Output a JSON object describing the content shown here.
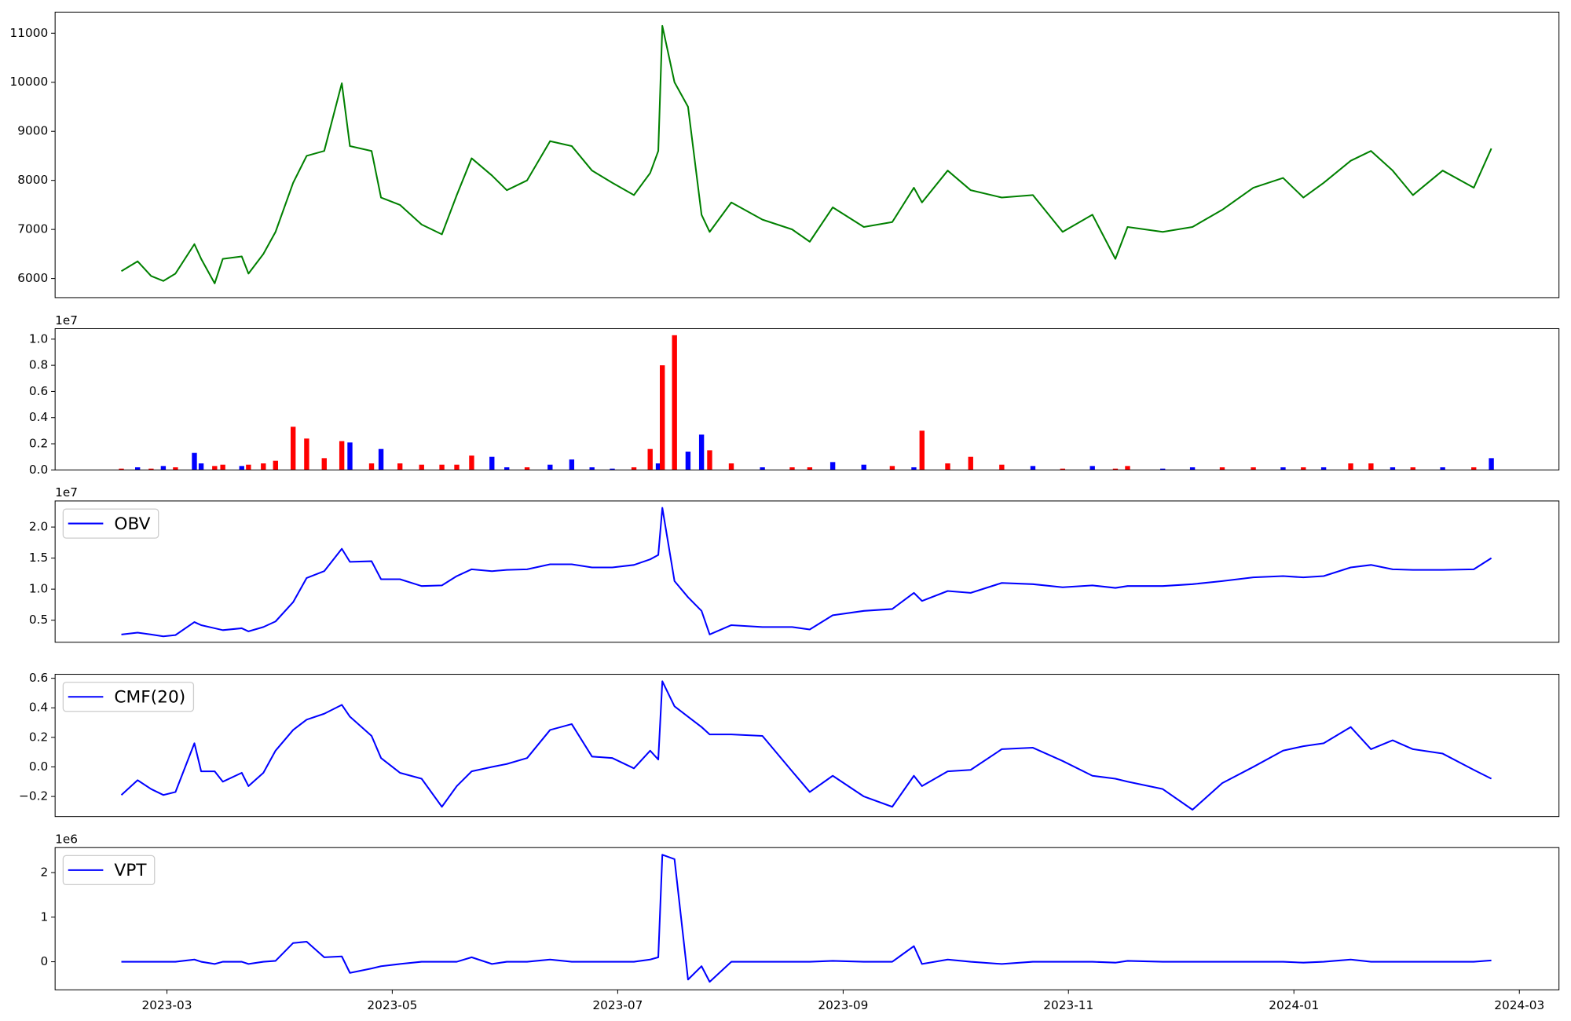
{
  "chart_data": [
    {
      "type": "line",
      "x": [
        2023.133,
        2023.145,
        2023.155,
        2023.164,
        2023.173,
        2023.187,
        2023.192,
        2023.202,
        2023.208,
        2023.222,
        2023.227,
        2023.238,
        2023.247,
        2023.26,
        2023.27,
        2023.283,
        2023.296,
        2023.302,
        2023.318,
        2023.325,
        2023.339,
        2023.355,
        2023.37,
        2023.381,
        2023.392,
        2023.407,
        2023.418,
        2023.433,
        2023.45,
        2023.466,
        2023.481,
        2023.496,
        2023.512,
        2023.524,
        2023.53,
        2023.533,
        2023.542,
        2023.552,
        2023.562,
        2023.568,
        2023.584,
        2023.607,
        2023.629,
        2023.642,
        2023.659,
        2023.682,
        2023.703,
        2023.719,
        2023.725,
        2023.744,
        2023.761,
        2023.784,
        2023.807,
        2023.829,
        2023.851,
        2023.868,
        2023.877,
        2023.903,
        2023.925,
        2023.947,
        2023.97,
        2023.992,
        2024.007,
        2024.022,
        2024.042,
        2024.057,
        2024.073,
        2024.088,
        2024.11,
        2024.133,
        2024.146
      ],
      "series": [
        {
          "color": "#008000",
          "values": [
            6150,
            6350,
            6050,
            5950,
            6100,
            6700,
            6400,
            5900,
            6400,
            6450,
            6100,
            6500,
            6950,
            7950,
            8500,
            8600,
            9980,
            8700,
            8600,
            7650,
            7500,
            7100,
            6900,
            7700,
            8450,
            8100,
            7800,
            8000,
            8800,
            8700,
            8200,
            7950,
            7700,
            8150,
            8600,
            11150,
            10000,
            9500,
            7300,
            6950,
            7550,
            7200,
            7000,
            6750,
            7450,
            7050,
            7150,
            7850,
            7550,
            8200,
            7800,
            7650,
            7700,
            6950,
            7300,
            6400,
            7050,
            6950,
            7050,
            7400,
            7850,
            8050,
            7650,
            7950,
            8400,
            8600,
            8200,
            7700,
            8200,
            7850,
            8650
          ]
        }
      ],
      "xlim": [
        2023.084,
        2024.196
      ],
      "ylim": [
        5610,
        11430
      ],
      "yticks": [
        6000,
        7000,
        8000,
        9000,
        10000,
        11000
      ]
    },
    {
      "type": "bar",
      "x": [
        2023.133,
        2023.145,
        2023.155,
        2023.164,
        2023.173,
        2023.187,
        2023.192,
        2023.202,
        2023.208,
        2023.222,
        2023.227,
        2023.238,
        2023.247,
        2023.26,
        2023.27,
        2023.283,
        2023.296,
        2023.302,
        2023.318,
        2023.325,
        2023.339,
        2023.355,
        2023.37,
        2023.381,
        2023.392,
        2023.407,
        2023.418,
        2023.433,
        2023.45,
        2023.466,
        2023.481,
        2023.496,
        2023.512,
        2023.524,
        2023.53,
        2023.533,
        2023.542,
        2023.552,
        2023.562,
        2023.568,
        2023.584,
        2023.607,
        2023.629,
        2023.642,
        2023.659,
        2023.682,
        2023.703,
        2023.719,
        2023.725,
        2023.744,
        2023.761,
        2023.784,
        2023.807,
        2023.829,
        2023.851,
        2023.868,
        2023.877,
        2023.903,
        2023.925,
        2023.947,
        2023.97,
        2023.992,
        2024.007,
        2024.022,
        2024.042,
        2024.057,
        2024.073,
        2024.088,
        2024.11,
        2024.133,
        2024.146
      ],
      "values": [
        0.01,
        0.02,
        0.01,
        0.03,
        0.02,
        0.13,
        0.05,
        0.03,
        0.04,
        0.03,
        0.04,
        0.05,
        0.07,
        0.33,
        0.24,
        0.09,
        0.22,
        0.21,
        0.05,
        0.16,
        0.05,
        0.04,
        0.04,
        0.04,
        0.11,
        0.1,
        0.02,
        0.02,
        0.04,
        0.08,
        0.02,
        0.01,
        0.02,
        0.16,
        0.05,
        0.8,
        1.03,
        0.14,
        0.27,
        0.15,
        0.05,
        0.02,
        0.02,
        0.02,
        0.06,
        0.04,
        0.03,
        0.02,
        0.3,
        0.05,
        0.1,
        0.04,
        0.03,
        0.01,
        0.03,
        0.01,
        0.03,
        0.01,
        0.02,
        0.02,
        0.02,
        0.02,
        0.02,
        0.02,
        0.05,
        0.05,
        0.02,
        0.02,
        0.02,
        0.02,
        0.09
      ],
      "colors": [
        "red",
        "blue",
        "red",
        "blue",
        "red",
        "blue",
        "blue",
        "red",
        "red",
        "blue",
        "red",
        "red",
        "red",
        "red",
        "red",
        "red",
        "red",
        "blue",
        "red",
        "blue",
        "red",
        "red",
        "red",
        "red",
        "red",
        "blue",
        "blue",
        "red",
        "blue",
        "blue",
        "blue",
        "blue",
        "red",
        "red",
        "blue",
        "red",
        "red",
        "blue",
        "blue",
        "red",
        "red",
        "blue",
        "red",
        "red",
        "blue",
        "blue",
        "red",
        "blue",
        "red",
        "red",
        "red",
        "red",
        "blue",
        "red",
        "blue",
        "red",
        "red",
        "blue",
        "blue",
        "red",
        "red",
        "blue",
        "red",
        "blue",
        "red",
        "red",
        "blue",
        "red",
        "blue",
        "red",
        "blue"
      ],
      "offset_label": "1e7",
      "xlim": [
        2023.084,
        2024.196
      ],
      "ylim": [
        0,
        1.08
      ],
      "yticks": [
        {
          "value": 0,
          "label": "0.0"
        },
        0.2,
        0.4,
        0.6,
        0.8,
        {
          "value": 1,
          "label": "1.0"
        }
      ]
    },
    {
      "type": "line",
      "x": [
        2023.133,
        2023.145,
        2023.155,
        2023.164,
        2023.173,
        2023.187,
        2023.192,
        2023.202,
        2023.208,
        2023.222,
        2023.227,
        2023.238,
        2023.247,
        2023.26,
        2023.27,
        2023.283,
        2023.296,
        2023.302,
        2023.318,
        2023.325,
        2023.339,
        2023.355,
        2023.37,
        2023.381,
        2023.392,
        2023.407,
        2023.418,
        2023.433,
        2023.45,
        2023.466,
        2023.481,
        2023.496,
        2023.512,
        2023.524,
        2023.53,
        2023.533,
        2023.542,
        2023.552,
        2023.562,
        2023.568,
        2023.584,
        2023.607,
        2023.629,
        2023.642,
        2023.659,
        2023.682,
        2023.703,
        2023.719,
        2023.725,
        2023.744,
        2023.761,
        2023.784,
        2023.807,
        2023.829,
        2023.851,
        2023.868,
        2023.877,
        2023.903,
        2023.925,
        2023.947,
        2023.97,
        2023.992,
        2024.007,
        2024.022,
        2024.042,
        2024.057,
        2024.073,
        2024.088,
        2024.11,
        2024.133,
        2024.146
      ],
      "series": [
        {
          "name": "OBV",
          "color": "#0000ff",
          "values": [
            0.27,
            0.3,
            0.27,
            0.24,
            0.26,
            0.47,
            0.42,
            0.37,
            0.34,
            0.37,
            0.32,
            0.39,
            0.48,
            0.79,
            1.18,
            1.29,
            1.65,
            1.44,
            1.45,
            1.16,
            1.16,
            1.05,
            1.06,
            1.21,
            1.32,
            1.29,
            1.31,
            1.32,
            1.4,
            1.4,
            1.35,
            1.35,
            1.39,
            1.48,
            1.55,
            2.31,
            1.13,
            0.87,
            0.65,
            0.27,
            0.42,
            0.39,
            0.39,
            0.35,
            0.58,
            0.65,
            0.68,
            0.94,
            0.81,
            0.97,
            0.94,
            1.1,
            1.08,
            1.03,
            1.06,
            1.02,
            1.05,
            1.05,
            1.08,
            1.13,
            1.19,
            1.21,
            1.19,
            1.21,
            1.35,
            1.39,
            1.32,
            1.31,
            1.31,
            1.32,
            1.5
          ]
        }
      ],
      "legend": "upper left",
      "offset_label": "1e7",
      "xlim": [
        2023.084,
        2024.196
      ],
      "ylim": [
        0.145,
        2.42
      ],
      "yticks": [
        0.5,
        {
          "value": 1,
          "label": "1.0"
        },
        1.5,
        {
          "value": 2,
          "label": "2.0"
        }
      ]
    },
    {
      "type": "line",
      "x": [
        2023.133,
        2023.145,
        2023.155,
        2023.164,
        2023.173,
        2023.187,
        2023.192,
        2023.202,
        2023.208,
        2023.222,
        2023.227,
        2023.238,
        2023.247,
        2023.26,
        2023.27,
        2023.283,
        2023.296,
        2023.302,
        2023.318,
        2023.325,
        2023.339,
        2023.355,
        2023.37,
        2023.381,
        2023.392,
        2023.407,
        2023.418,
        2023.433,
        2023.45,
        2023.466,
        2023.481,
        2023.496,
        2023.512,
        2023.524,
        2023.53,
        2023.533,
        2023.542,
        2023.552,
        2023.562,
        2023.568,
        2023.584,
        2023.607,
        2023.629,
        2023.642,
        2023.659,
        2023.682,
        2023.703,
        2023.719,
        2023.725,
        2023.744,
        2023.761,
        2023.784,
        2023.807,
        2023.829,
        2023.851,
        2023.868,
        2023.877,
        2023.903,
        2023.925,
        2023.947,
        2023.97,
        2023.992,
        2024.007,
        2024.022,
        2024.042,
        2024.057,
        2024.073,
        2024.088,
        2024.11,
        2024.133,
        2024.146
      ],
      "series": [
        {
          "name": "CMF(20)",
          "color": "#0000ff",
          "values": [
            -0.19,
            -0.09,
            -0.15,
            -0.19,
            -0.17,
            0.16,
            -0.03,
            -0.03,
            -0.1,
            -0.04,
            -0.13,
            -0.04,
            0.11,
            0.25,
            0.32,
            0.36,
            0.42,
            0.34,
            0.21,
            0.06,
            -0.04,
            -0.08,
            -0.27,
            -0.13,
            -0.03,
            0,
            0.02,
            0.06,
            0.25,
            0.29,
            0.07,
            0.06,
            -0.01,
            0.11,
            0.05,
            0.58,
            0.41,
            0.34,
            0.27,
            0.22,
            0.22,
            0.21,
            -0.03,
            -0.17,
            -0.06,
            -0.2,
            -0.27,
            -0.06,
            -0.13,
            -0.03,
            -0.02,
            0.12,
            0.13,
            0.04,
            -0.06,
            -0.08,
            -0.1,
            -0.15,
            -0.29,
            -0.11,
            0,
            0.11,
            0.14,
            0.16,
            0.27,
            0.12,
            0.18,
            0.12,
            0.09,
            -0.02,
            -0.08
          ]
        }
      ],
      "legend": "upper left",
      "xlim": [
        2023.084,
        2024.196
      ],
      "ylim": [
        -0.336,
        0.627
      ],
      "yticks": [
        {
          "value": -0.2,
          "label": "−0.2"
        },
        {
          "value": 0,
          "label": "0.0"
        },
        0.2,
        0.4,
        0.6
      ]
    },
    {
      "type": "line",
      "x": [
        2023.133,
        2023.145,
        2023.155,
        2023.164,
        2023.173,
        2023.187,
        2023.192,
        2023.202,
        2023.208,
        2023.222,
        2023.227,
        2023.238,
        2023.247,
        2023.26,
        2023.27,
        2023.283,
        2023.296,
        2023.302,
        2023.318,
        2023.325,
        2023.339,
        2023.355,
        2023.37,
        2023.381,
        2023.392,
        2023.407,
        2023.418,
        2023.433,
        2023.45,
        2023.466,
        2023.481,
        2023.496,
        2023.512,
        2023.524,
        2023.53,
        2023.533,
        2023.542,
        2023.552,
        2023.562,
        2023.568,
        2023.584,
        2023.607,
        2023.629,
        2023.642,
        2023.659,
        2023.682,
        2023.703,
        2023.719,
        2023.725,
        2023.744,
        2023.761,
        2023.784,
        2023.807,
        2023.829,
        2023.851,
        2023.868,
        2023.877,
        2023.903,
        2023.925,
        2023.947,
        2023.97,
        2023.992,
        2024.007,
        2024.022,
        2024.042,
        2024.057,
        2024.073,
        2024.088,
        2024.11,
        2024.133,
        2024.146
      ],
      "series": [
        {
          "name": "VPT",
          "color": "#0000ff",
          "values": [
            0,
            0,
            0,
            0,
            0,
            0.05,
            0,
            -0.05,
            0,
            0,
            -0.05,
            0,
            0.02,
            0.42,
            0.45,
            0.1,
            0.12,
            -0.25,
            -0.15,
            -0.1,
            -0.05,
            0,
            0,
            0,
            0.1,
            -0.05,
            0,
            0,
            0.05,
            0,
            0,
            0,
            0,
            0.05,
            0.1,
            2.4,
            2.3,
            -0.4,
            -0.1,
            -0.45,
            0,
            0,
            0,
            0,
            0.02,
            0,
            0,
            0.35,
            -0.05,
            0.05,
            0,
            -0.05,
            0,
            0,
            0,
            -0.02,
            0.02,
            0,
            0,
            0,
            0,
            0,
            -0.02,
            0,
            0.05,
            0,
            0,
            0,
            0,
            0,
            0.03
          ]
        }
      ],
      "legend": "upper left",
      "offset_label": "1e6",
      "xlim": [
        2023.084,
        2024.196
      ],
      "ylim": [
        -0.63,
        2.56
      ],
      "yticks": [
        0,
        1,
        2
      ],
      "xticks": [
        {
          "value": 2023.1667,
          "label": "2023-03"
        },
        {
          "value": 2023.3333,
          "label": "2023-05"
        },
        {
          "value": 2023.5,
          "label": "2023-07"
        },
        {
          "value": 2023.6667,
          "label": "2023-09"
        },
        {
          "value": 2023.8333,
          "label": "2023-11"
        },
        {
          "value": 2024.0,
          "label": "2024-01"
        },
        {
          "value": 2024.1667,
          "label": "2024-03"
        }
      ]
    }
  ]
}
